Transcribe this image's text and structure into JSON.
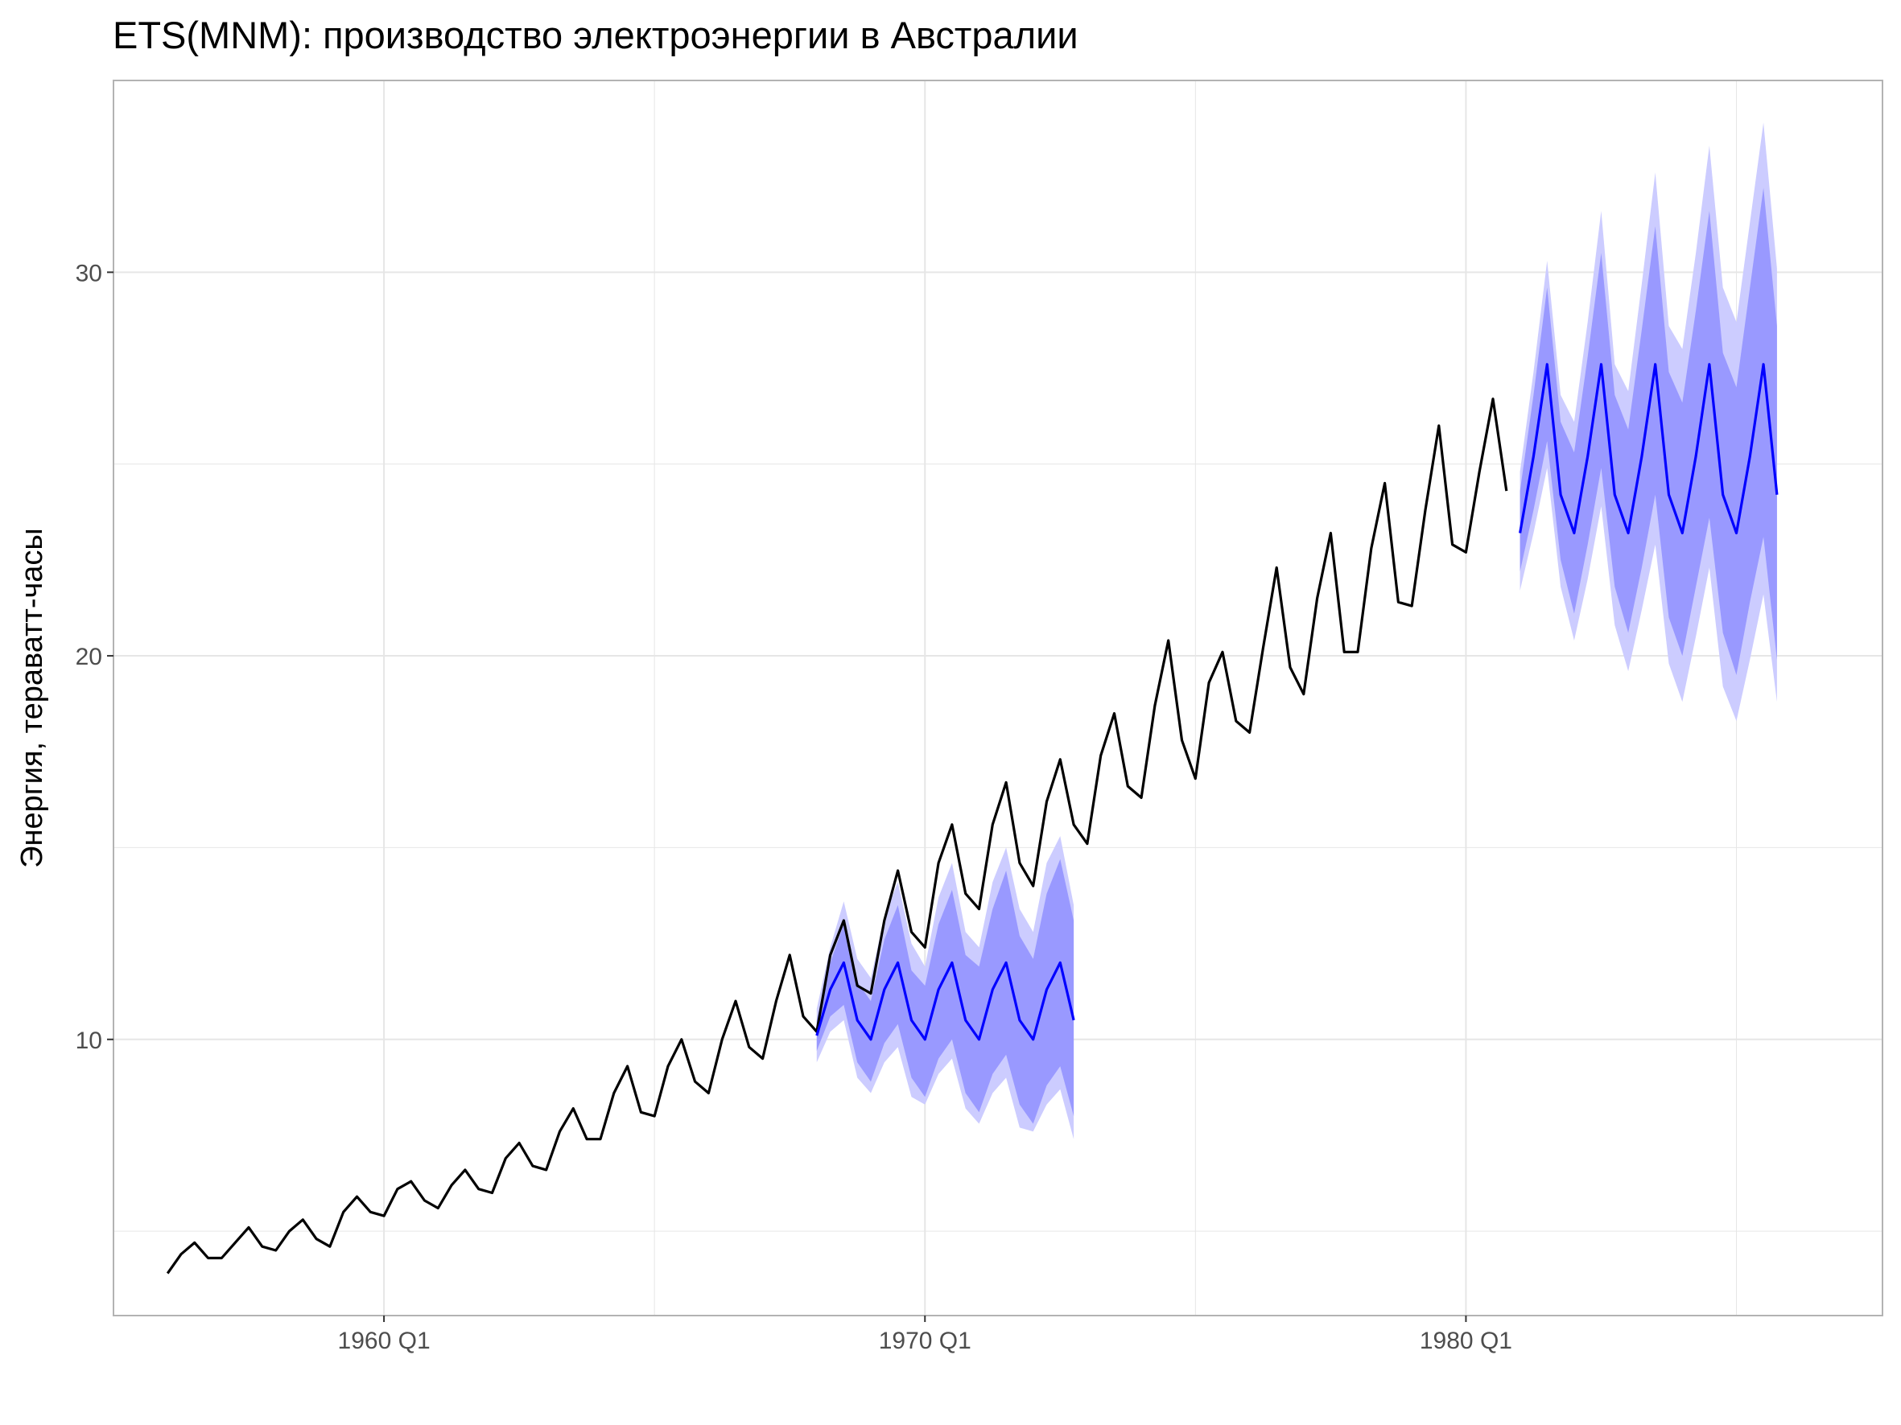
{
  "chart_data": {
    "type": "line",
    "title": "ETS(MNM): производство электроэнергии в Австралии",
    "xlabel": "",
    "ylabel": "Энергия, тераватт-часы",
    "xlim": [
      1955.0,
      1987.7
    ],
    "ylim": [
      2.8,
      35.0
    ],
    "x_ticks": [
      {
        "value": 1960.0,
        "label": "1960 Q1"
      },
      {
        "value": 1970.0,
        "label": "1970 Q1"
      },
      {
        "value": 1980.0,
        "label": "1980 Q1"
      }
    ],
    "x_minor_ticks": [
      1955.0,
      1965.0,
      1975.0,
      1985.0
    ],
    "y_ticks": [
      {
        "value": 10,
        "label": "10"
      },
      {
        "value": 20,
        "label": "20"
      },
      {
        "value": 30,
        "label": "30"
      }
    ],
    "y_minor_ticks": [
      5,
      15,
      25
    ],
    "grid": true,
    "colors": {
      "actual": "#000000",
      "forecast": "#0000ff",
      "band80": "#9999ff",
      "band95": "#ccccff",
      "grid": "#e6e6e6",
      "panel_border": "#b3b3b3"
    },
    "series": [
      {
        "role": "actual",
        "x_start": 1956.0,
        "x_step": 0.25,
        "values": [
          3.9,
          4.4,
          4.7,
          4.3,
          4.3,
          4.7,
          5.1,
          4.6,
          4.5,
          5.0,
          5.3,
          4.8,
          4.6,
          5.5,
          5.9,
          5.5,
          5.4,
          6.1,
          6.3,
          5.8,
          5.6,
          6.2,
          6.6,
          6.1,
          6.0,
          6.9,
          7.3,
          6.7,
          6.6,
          7.6,
          8.2,
          7.4,
          7.4,
          8.6,
          9.3,
          8.1,
          8.0,
          9.3,
          10.0,
          8.9,
          8.6,
          10.0,
          11.0,
          9.8,
          9.5,
          11.0,
          12.2,
          10.6,
          10.2,
          12.2,
          13.1,
          11.4,
          11.2,
          13.1,
          14.4,
          12.8,
          12.4,
          14.6,
          15.6,
          13.8,
          13.4,
          15.6,
          16.7,
          14.6,
          14.0,
          16.2,
          17.3,
          15.6,
          15.1,
          17.4,
          18.5,
          16.6,
          16.3,
          18.7,
          20.4,
          17.8,
          16.8,
          19.3,
          20.1,
          18.3,
          18.0,
          20.2,
          22.3,
          19.7,
          19.0,
          21.5,
          23.2,
          20.1,
          20.1,
          22.8,
          24.5,
          21.4,
          21.3,
          23.8,
          26.0,
          22.9,
          22.7,
          24.8,
          26.7,
          24.3
        ]
      }
    ],
    "forecasts": [
      {
        "x_start": 1968.0,
        "x_step": 0.25,
        "mean": [
          10.1,
          11.3,
          12.0,
          10.5,
          10.0,
          11.3,
          12.0,
          10.5,
          10.0,
          11.3,
          12.0,
          10.5,
          10.0,
          11.3,
          12.0,
          10.5,
          10.0,
          11.3,
          12.0,
          10.5
        ],
        "lo80": [
          9.7,
          10.6,
          10.9,
          9.4,
          8.9,
          9.9,
          10.4,
          9.0,
          8.5,
          9.5,
          10.0,
          8.6,
          8.1,
          9.1,
          9.6,
          8.3,
          7.8,
          8.8,
          9.3,
          8.0
        ],
        "hi80": [
          10.5,
          12.0,
          13.0,
          11.5,
          11.0,
          12.6,
          13.5,
          11.8,
          11.4,
          13.0,
          13.9,
          12.2,
          11.9,
          13.4,
          14.4,
          12.7,
          12.1,
          13.8,
          14.7,
          13.1
        ],
        "lo95": [
          9.4,
          10.2,
          10.5,
          9.0,
          8.6,
          9.4,
          9.8,
          8.5,
          8.3,
          9.1,
          9.5,
          8.2,
          7.8,
          8.6,
          9.0,
          7.7,
          7.6,
          8.3,
          8.7,
          7.4
        ],
        "hi95": [
          10.8,
          12.4,
          13.6,
          12.1,
          11.6,
          13.2,
          14.1,
          12.5,
          11.9,
          13.7,
          14.6,
          12.8,
          12.4,
          14.1,
          15.0,
          13.4,
          12.8,
          14.6,
          15.3,
          13.5
        ]
      },
      {
        "x_start": 1981.0,
        "x_step": 0.25,
        "mean": [
          23.2,
          25.2,
          27.6,
          24.2,
          23.2,
          25.2,
          27.6,
          24.2,
          23.2,
          25.2,
          27.6,
          24.2,
          23.2,
          25.2,
          27.6,
          24.2,
          23.2,
          25.2,
          27.6,
          24.2
        ],
        "lo80": [
          22.2,
          23.8,
          25.6,
          22.5,
          21.1,
          22.9,
          24.9,
          21.8,
          20.6,
          22.3,
          24.2,
          21.0,
          20.0,
          21.8,
          23.6,
          20.6,
          19.5,
          21.4,
          23.1,
          19.9
        ],
        "hi80": [
          24.3,
          26.8,
          29.6,
          26.1,
          25.3,
          27.8,
          30.5,
          26.8,
          25.9,
          28.5,
          31.2,
          27.4,
          26.6,
          29.0,
          31.6,
          27.9,
          27.0,
          29.6,
          32.2,
          28.6
        ],
        "lo95": [
          21.7,
          23.2,
          24.9,
          21.8,
          20.4,
          22.0,
          23.9,
          20.8,
          19.6,
          21.2,
          22.9,
          19.8,
          18.8,
          20.5,
          22.3,
          19.2,
          18.3,
          19.9,
          21.6,
          18.8
        ],
        "hi95": [
          24.8,
          27.4,
          30.3,
          26.8,
          26.1,
          28.7,
          31.6,
          27.6,
          26.9,
          29.7,
          32.6,
          28.6,
          28.0,
          30.5,
          33.3,
          29.6,
          28.7,
          31.3,
          33.9,
          30.1
        ]
      }
    ]
  }
}
